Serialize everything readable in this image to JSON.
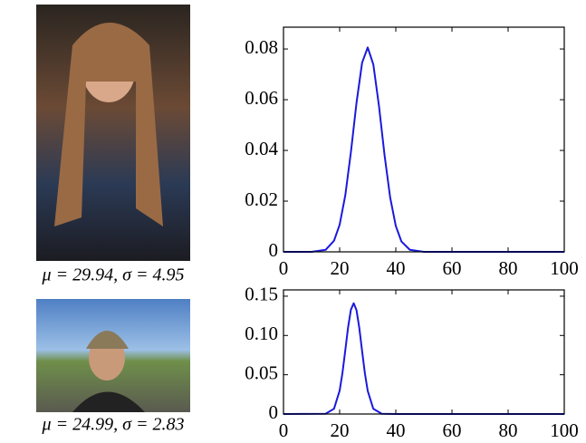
{
  "chart_data": [
    {
      "type": "line",
      "caption": "μ = 29.94, σ = 4.95",
      "color": "#1a1adc",
      "x": [
        0,
        10,
        15,
        18,
        20,
        22,
        24,
        26,
        28,
        30,
        32,
        34,
        36,
        38,
        40,
        42,
        45,
        50,
        60,
        80,
        100
      ],
      "values": [
        0,
        0,
        0.0008,
        0.0044,
        0.0107,
        0.0222,
        0.0392,
        0.0587,
        0.0746,
        0.0806,
        0.0739,
        0.0576,
        0.0381,
        0.0214,
        0.0102,
        0.0041,
        0.0008,
        0,
        0,
        0,
        0
      ],
      "xlim": [
        0,
        100
      ],
      "xticks": [
        0,
        20,
        40,
        60,
        80,
        100
      ],
      "ylim": [
        0,
        0.0886
      ],
      "yticks": [
        0,
        0.02,
        0.04,
        0.06,
        0.08
      ]
    },
    {
      "type": "line",
      "caption": "μ = 24.99, σ = 2.83",
      "color": "#1a1adc",
      "x": [
        0,
        15,
        18,
        20,
        21,
        22,
        23,
        24,
        25,
        26,
        27,
        28,
        29,
        30,
        32,
        35,
        40,
        60,
        100
      ],
      "values": [
        0,
        0.0003,
        0.0067,
        0.0298,
        0.0522,
        0.0807,
        0.1101,
        0.1327,
        0.141,
        0.1323,
        0.1096,
        0.0801,
        0.0516,
        0.0294,
        0.0066,
        0.0003,
        0,
        0,
        0
      ],
      "xlim": [
        0,
        100
      ],
      "xticks": [
        0,
        20,
        40,
        60,
        80,
        100
      ],
      "ylim": [
        0,
        0.158
      ],
      "yticks": [
        0,
        0.05,
        {
          "value": 0.1,
          "label": "0.10"
        },
        0.15
      ]
    }
  ]
}
